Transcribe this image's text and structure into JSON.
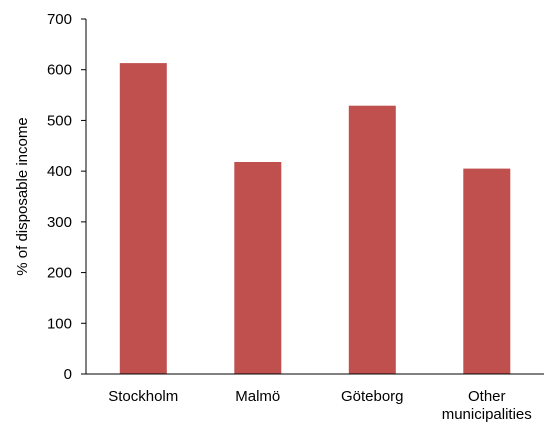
{
  "chart_data": {
    "type": "bar",
    "title": "",
    "xlabel": "",
    "ylabel": "% of disposable income",
    "categories": [
      [
        "Stockholm"
      ],
      [
        "Malmö"
      ],
      [
        "Göteborg"
      ],
      [
        "Other",
        "municipalities"
      ]
    ],
    "values": [
      613,
      418,
      529,
      405
    ],
    "ylim": [
      0,
      700
    ],
    "yticks": [
      0,
      100,
      200,
      300,
      400,
      500,
      600,
      700
    ],
    "grid": false,
    "legend": "none",
    "bar_color": "#c0504d"
  }
}
